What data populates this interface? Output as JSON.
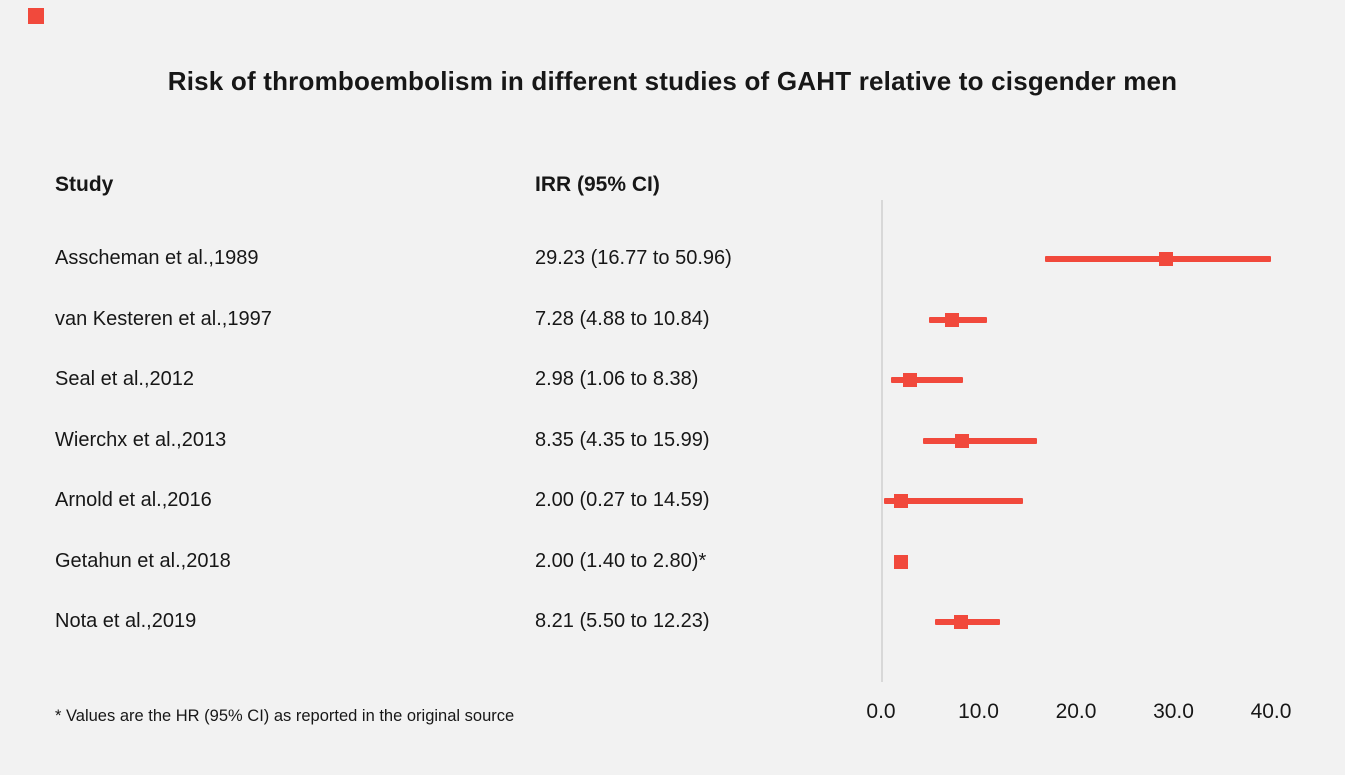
{
  "page": {
    "title": "Risk of thromboembolism in different studies of GAHT relative to cisgender men",
    "footnote": "* Values are the HR (95% CI) as reported in the original source"
  },
  "table": {
    "col_study": "Study",
    "col_irr": "IRR (95% CI)"
  },
  "colors": {
    "accent_red": "#f1493c",
    "axis_gray": "#d8d8d8",
    "background": "#f2f2f2",
    "text": "#171717"
  },
  "chart_data": {
    "type": "forest",
    "title": "Risk of thromboembolism in different studies of GAHT relative to cisgender men",
    "xlabel": "",
    "ylabel": "",
    "xlim": [
      0,
      40
    ],
    "xticks": [
      0,
      10,
      20,
      30,
      40
    ],
    "tick_labels": [
      "0.0",
      "10.0",
      "20.0",
      "30.0",
      "40.0"
    ],
    "grid": false,
    "legend": "none",
    "marker": "square",
    "studies": [
      {
        "label": "Asscheman et al.,1989",
        "irr_text": "29.23 (16.77 to 50.96)",
        "est": 29.23,
        "lo": 16.77,
        "hi": 50.96
      },
      {
        "label": "van Kesteren et al.,1997",
        "irr_text": "7.28 (4.88 to 10.84)",
        "est": 7.28,
        "lo": 4.88,
        "hi": 10.84
      },
      {
        "label": "Seal et al.,2012",
        "irr_text": "2.98 (1.06 to 8.38)",
        "est": 2.98,
        "lo": 1.06,
        "hi": 8.38
      },
      {
        "label": "Wierchx et al.,2013",
        "irr_text": "8.35 (4.35 to 15.99)",
        "est": 8.35,
        "lo": 4.35,
        "hi": 15.99
      },
      {
        "label": "Arnold et al.,2016",
        "irr_text": "2.00 (0.27 to 14.59)",
        "est": 2.0,
        "lo": 0.27,
        "hi": 14.59
      },
      {
        "label": "Getahun et al.,2018",
        "irr_text": "2.00 (1.40 to 2.80)*",
        "est": 2.0,
        "lo": 1.4,
        "hi": 2.8
      },
      {
        "label": "Nota et al.,2019",
        "irr_text": "8.21 (5.50 to 12.23)",
        "est": 8.21,
        "lo": 5.5,
        "hi": 12.23
      }
    ]
  }
}
